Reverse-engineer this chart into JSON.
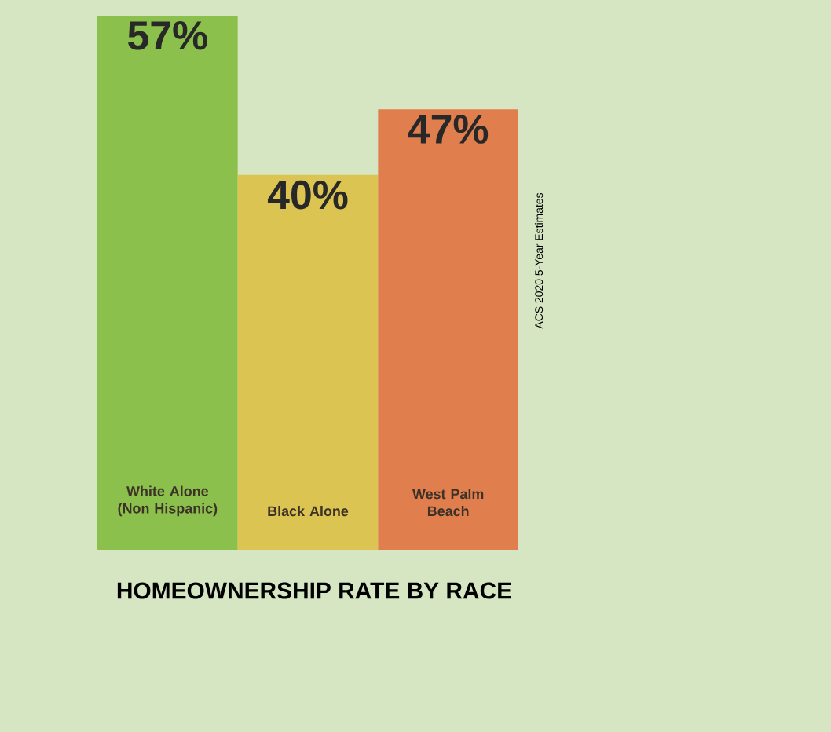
{
  "chart_data": {
    "type": "bar",
    "title": "HOMEOWNERSHIP RATE BY RACE",
    "categories": [
      "White Alone (Non Hispanic)",
      "Black Alone",
      "West Palm Beach"
    ],
    "values": [
      57,
      40,
      47
    ],
    "colors": [
      "#8cc04c",
      "#dcc452",
      "#e07e4e"
    ],
    "data_labels": true,
    "value_labels": [
      "57%",
      "40%",
      "47%"
    ],
    "annotations": [
      "ACS 2020 5-Year Estimates"
    ]
  }
}
